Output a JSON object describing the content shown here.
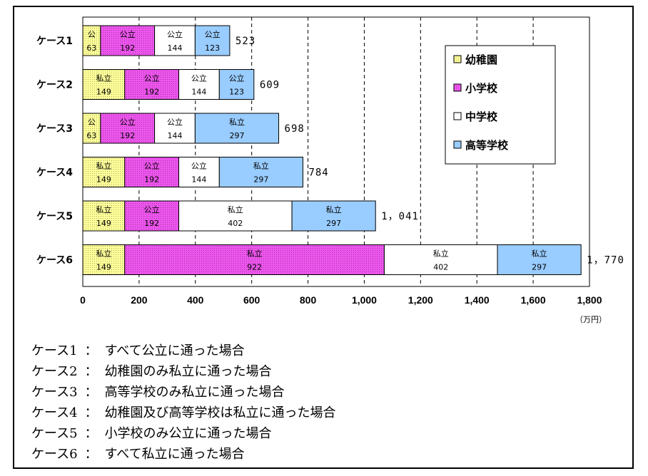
{
  "chart_data": {
    "type": "bar",
    "orientation": "horizontal",
    "stacked": true,
    "categories": [
      "ケース1",
      "ケース2",
      "ケース3",
      "ケース4",
      "ケース5",
      "ケース6"
    ],
    "series": [
      {
        "name": "幼稚園",
        "color": "#ffff99",
        "pattern": "dots",
        "segment_labels": [
          "公",
          "私立",
          "公",
          "私立",
          "私立",
          "私立"
        ],
        "values": [
          63,
          149,
          63,
          149,
          149,
          149
        ]
      },
      {
        "name": "小学校",
        "color": "#ee55ee",
        "pattern": "dots",
        "segment_labels": [
          "公立",
          "公立",
          "公立",
          "公立",
          "公立",
          "私立"
        ],
        "values": [
          192,
          192,
          192,
          192,
          192,
          922
        ]
      },
      {
        "name": "中学校",
        "color": "#ffffff",
        "pattern": "none",
        "segment_labels": [
          "公立",
          "公立",
          "公立",
          "公立",
          "私立",
          "私立"
        ],
        "values": [
          144,
          144,
          144,
          144,
          402,
          402
        ]
      },
      {
        "name": "高等学校",
        "color": "#99ccff",
        "pattern": "none",
        "segment_labels": [
          "公立",
          "公立",
          "私立",
          "私立",
          "私立",
          "私立"
        ],
        "values": [
          123,
          123,
          297,
          297,
          297,
          297
        ]
      }
    ],
    "totals": [
      "523",
      "609",
      "698",
      "784",
      "1，041",
      "1，770"
    ],
    "xlim": [
      0,
      1800
    ],
    "xticks": [
      0,
      200,
      400,
      600,
      800,
      1000,
      1200,
      1400,
      1600,
      1800
    ],
    "xtick_labels": [
      "0",
      "200",
      "400",
      "600",
      "800",
      "1,000",
      "1,200",
      "1,400",
      "1,600",
      "1,800"
    ],
    "unit": "（万円）",
    "grid": "vertical-dashed",
    "legend_position": "right-inside-top"
  },
  "notes": [
    {
      "label": "ケース1",
      "sep": "：",
      "text": "すべて公立に通った場合"
    },
    {
      "label": "ケース2",
      "sep": "：",
      "text": "幼稚園のみ私立に通った場合"
    },
    {
      "label": "ケース3",
      "sep": "：",
      "text": "高等学校のみ私立に通った場合"
    },
    {
      "label": "ケース4",
      "sep": "：",
      "text": "幼稚園及び高等学校は私立に通った場合"
    },
    {
      "label": "ケース5",
      "sep": "：",
      "text": "小学校のみ公立に通った場合"
    },
    {
      "label": "ケース6",
      "sep": "：",
      "text": "すべて私立に通った場合"
    }
  ]
}
